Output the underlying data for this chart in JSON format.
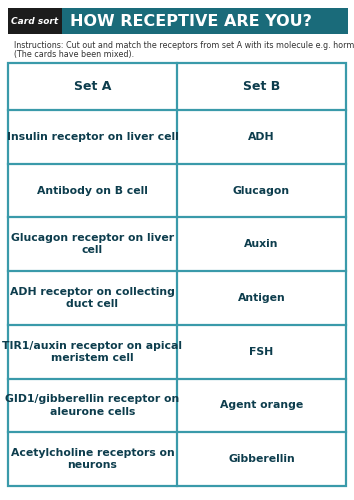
{
  "title": "HOW RECEPTIVE ARE YOU?",
  "card_sort_label": "Card sort",
  "instructions_line1": "Instructions: Cut out and match the receptors from set A with its molecule e.g. hormone from set B.",
  "instructions_line2": "(The cards have been mixed).",
  "set_a_header": "Set A",
  "set_b_header": "Set B",
  "set_a_items": [
    "Insulin receptor on liver cell",
    "Antibody on B cell",
    "Glucagon receptor on liver\ncell",
    "ADH receptor on collecting\nduct cell",
    "TIR1/auxin receptor on apical\nmeristem cell",
    "GID1/gibberellin receptor on\naleurone cells",
    "Acetylcholine receptors on\nneurons"
  ],
  "set_b_items": [
    "ADH",
    "Glucagon",
    "Auxin",
    "Antigen",
    "FSH",
    "Agent orange",
    "Gibberellin"
  ],
  "header_bg": "#1a6b7a",
  "header_text_color": "#ffffff",
  "card_sort_bg": "#1c1c1c",
  "card_sort_text_color": "#ffffff",
  "table_border_color": "#3a9aaa",
  "table_text_color": "#0d3d4d",
  "bg_color": "#ffffff",
  "instruction_fontsize": 5.8,
  "title_fontsize": 11.5,
  "card_sort_fontsize": 6.5,
  "header_cell_fontsize": 9,
  "cell_fontsize": 7.8,
  "fig_w": 3.54,
  "fig_h": 5.0,
  "dpi": 100
}
